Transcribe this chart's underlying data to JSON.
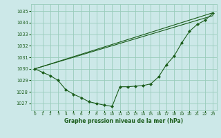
{
  "title": "Graphe pression niveau de la mer (hPa)",
  "bg_color": "#cce8e8",
  "grid_color": "#99ccbb",
  "line_color": "#1a5c1a",
  "xlim": [
    -0.5,
    23.5
  ],
  "ylim": [
    1026.4,
    1035.6
  ],
  "yticks": [
    1027,
    1028,
    1029,
    1030,
    1031,
    1032,
    1033,
    1034,
    1035
  ],
  "xticks": [
    0,
    1,
    2,
    3,
    4,
    5,
    6,
    7,
    8,
    9,
    10,
    11,
    12,
    13,
    14,
    15,
    16,
    17,
    18,
    19,
    20,
    21,
    22,
    23
  ],
  "series": [
    {
      "x": [
        0,
        1,
        2,
        3,
        4,
        5,
        6,
        7,
        8,
        9,
        10,
        11,
        12,
        13,
        14,
        15,
        16,
        17,
        18,
        19,
        20,
        21,
        22,
        23
      ],
      "y": [
        1030.0,
        1029.7,
        1029.4,
        1029.0,
        1028.2,
        1027.8,
        1027.5,
        1027.15,
        1027.0,
        1026.85,
        1026.75,
        1028.45,
        1028.45,
        1028.5,
        1028.55,
        1028.7,
        1029.3,
        1030.35,
        1031.1,
        1032.25,
        1033.25,
        1033.85,
        1034.2,
        1034.8
      ]
    },
    {
      "x": [
        0,
        23
      ],
      "y": [
        1030.0,
        1034.6
      ]
    },
    {
      "x": [
        0,
        23
      ],
      "y": [
        1030.0,
        1034.85
      ]
    }
  ]
}
